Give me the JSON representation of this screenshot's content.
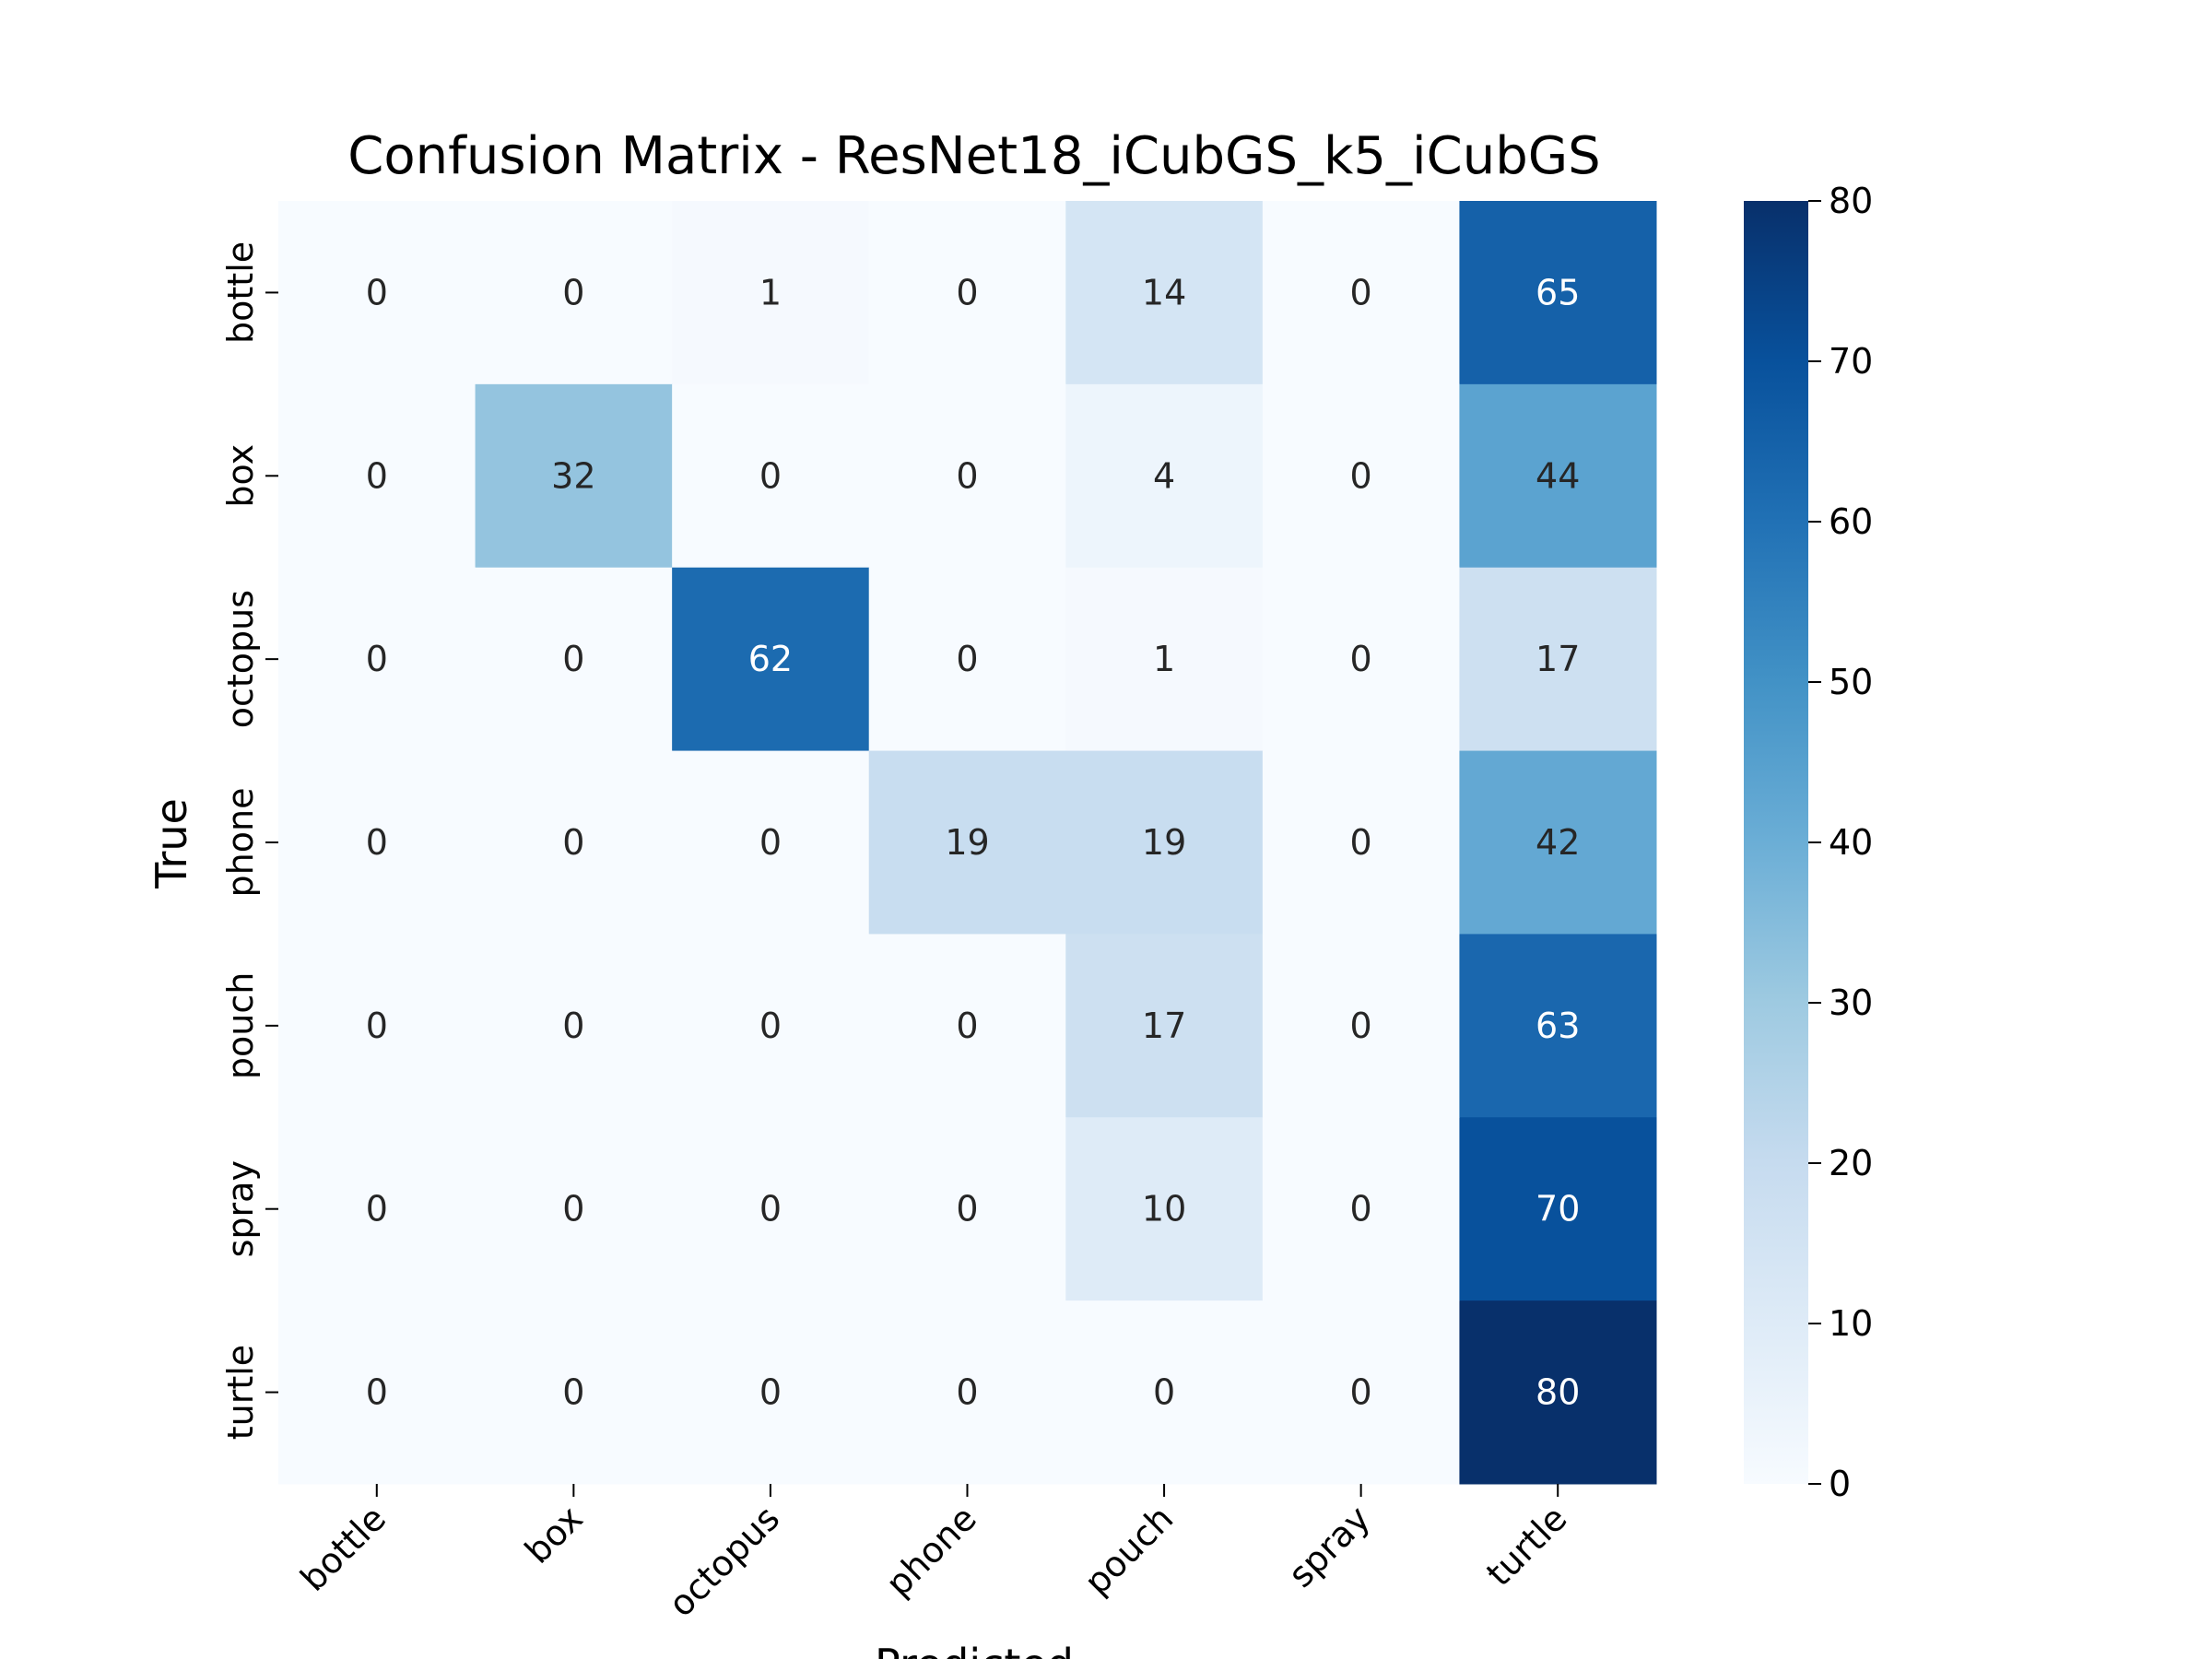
{
  "chart_data": {
    "type": "heatmap",
    "title": "Confusion Matrix - ResNet18_iCubGS_k5_iCubGS",
    "xlabel": "Predicted",
    "ylabel": "True",
    "x_categories": [
      "bottle",
      "box",
      "octopus",
      "phone",
      "pouch",
      "spray",
      "turtle"
    ],
    "y_categories": [
      "bottle",
      "box",
      "octopus",
      "phone",
      "pouch",
      "spray",
      "turtle"
    ],
    "values": [
      [
        0,
        0,
        1,
        0,
        14,
        0,
        65
      ],
      [
        0,
        32,
        0,
        0,
        4,
        0,
        44
      ],
      [
        0,
        0,
        62,
        0,
        1,
        0,
        17
      ],
      [
        0,
        0,
        0,
        19,
        19,
        0,
        42
      ],
      [
        0,
        0,
        0,
        0,
        17,
        0,
        63
      ],
      [
        0,
        0,
        0,
        0,
        10,
        0,
        70
      ],
      [
        0,
        0,
        0,
        0,
        0,
        0,
        80
      ]
    ],
    "colormap": "Blues",
    "color_range": [
      0,
      80
    ],
    "colorbar_ticks": [
      0,
      10,
      20,
      30,
      40,
      50,
      60,
      70,
      80
    ],
    "grid": false,
    "colorbar": "right"
  }
}
